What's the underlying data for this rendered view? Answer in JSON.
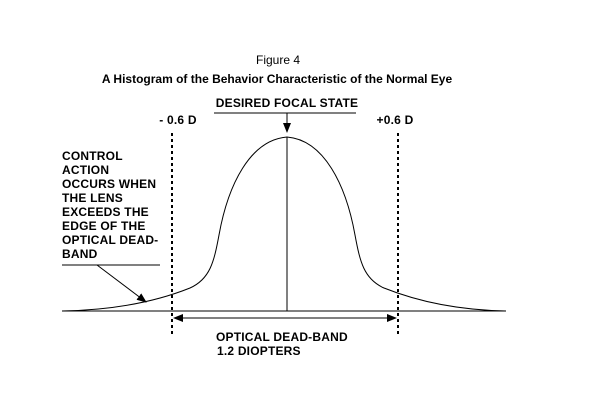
{
  "figure_number": "Figure 4",
  "title": "A Histogram of the Behavior Characteristic of the Normal Eye",
  "labels": {
    "desired_focal_state": "DESIRED FOCAL STATE",
    "left_edge": "- 0.6 D",
    "right_edge": "+0.6 D",
    "control_action": [
      "CONTROL",
      "ACTION",
      "OCCURS WHEN",
      "THE LENS",
      "EXCEEDS THE",
      "EDGE OF THE",
      "OPTICAL DEAD-",
      "BAND"
    ],
    "dead_band": [
      "OPTICAL DEAD-BAND",
      "1.2 DIOPTERS"
    ]
  },
  "colors": {
    "line": "#000000",
    "background": "#ffffff"
  }
}
